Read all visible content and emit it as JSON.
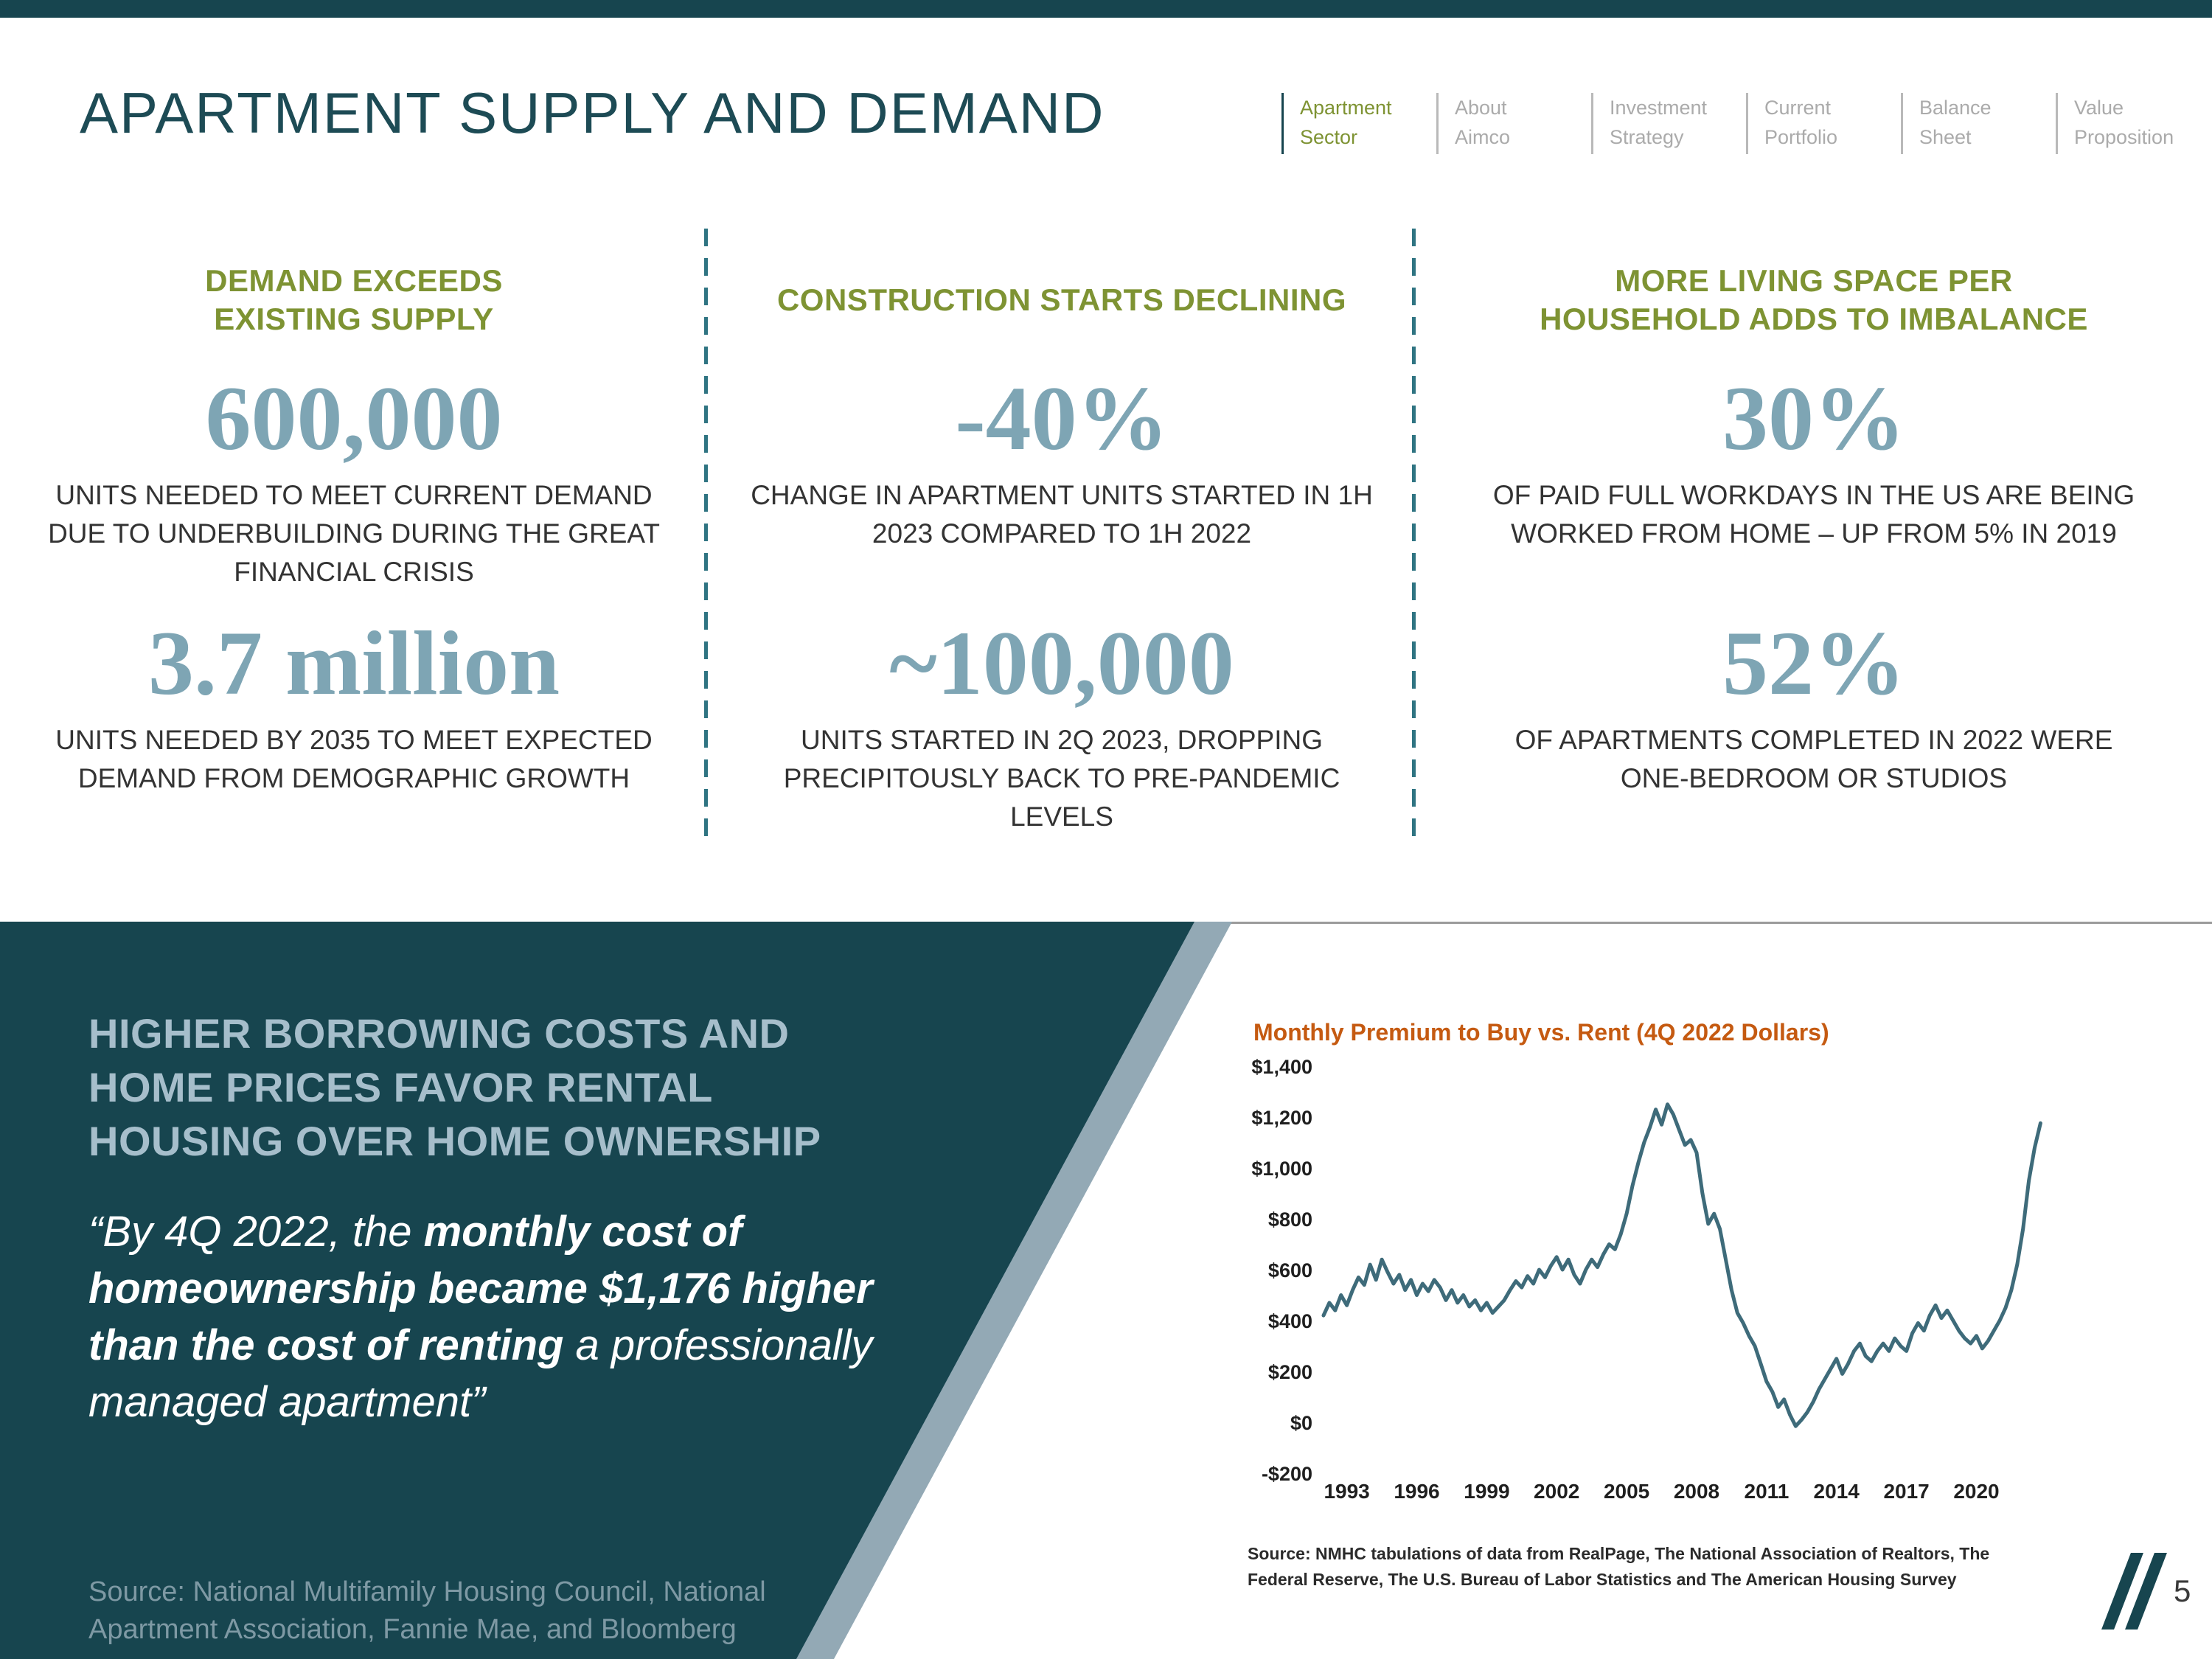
{
  "header": {
    "title": "APARTMENT SUPPLY AND DEMAND",
    "nav": [
      {
        "line1": "Apartment",
        "line2": "Sector",
        "active": true
      },
      {
        "line1": "About",
        "line2": "Aimco",
        "active": false
      },
      {
        "line1": "Investment",
        "line2": "Strategy",
        "active": false
      },
      {
        "line1": "Current",
        "line2": "Portfolio",
        "active": false
      },
      {
        "line1": "Balance",
        "line2": "Sheet",
        "active": false
      },
      {
        "line1": "Value",
        "line2": "Proposition",
        "active": false
      }
    ]
  },
  "stats": {
    "columns": [
      {
        "heading": "DEMAND EXCEEDS EXISTING SUPPLY",
        "stat1_value": "600,000",
        "stat1_caption": "UNITS NEEDED TO MEET CURRENT DEMAND DUE TO UNDERBUILDING DURING THE GREAT FINANCIAL CRISIS",
        "stat2_value": "3.7 million",
        "stat2_caption": "UNITS NEEDED BY 2035 TO MEET EXPECTED DEMAND FROM DEMOGRAPHIC GROWTH"
      },
      {
        "heading": "CONSTRUCTION STARTS DECLINING",
        "stat1_value": "-40%",
        "stat1_caption": "CHANGE IN APARTMENT UNITS STARTED IN 1H 2023 COMPARED TO 1H 2022",
        "stat2_value": "~100,000",
        "stat2_caption": "UNITS STARTED IN 2Q 2023, DROPPING PRECIPITOUSLY BACK TO PRE-PANDEMIC LEVELS"
      },
      {
        "heading": "MORE LIVING SPACE PER HOUSEHOLD ADDS TO IMBALANCE",
        "stat1_value": "30%",
        "stat1_caption": "OF PAID FULL WORKDAYS IN THE US ARE BEING WORKED FROM HOME – UP FROM 5% IN 2019",
        "stat2_value": "52%",
        "stat2_caption": "OF APARTMENTS COMPLETED IN 2022 WERE ONE-BEDROOM OR STUDIOS"
      }
    ]
  },
  "panel": {
    "heading": "HIGHER BORROWING COSTS AND HOME PRICES FAVOR RENTAL HOUSING OVER HOME OWNERSHIP",
    "quote_prefix": "“By 4Q 2022, the ",
    "quote_bold": "monthly cost of homeownership became $1,176 higher than the cost of renting",
    "quote_suffix": " a professionally managed apartment”",
    "source": "Source: National Multifamily Housing Council, National Apartment Association, Fannie Mae, and Bloomberg"
  },
  "page_number": "5",
  "colors": {
    "teal_dark": "#17454F",
    "steel_blue": "#7EA5B4",
    "olive_green": "#7E9333",
    "chart_title_orange": "#C55A11",
    "chart_line": "#3E6B7A",
    "panel_heading": "#A6BECB",
    "nav_inactive_gray": "#ABABAB"
  },
  "chart_data": {
    "type": "line",
    "title": "Monthly Premium to Buy vs. Rent (4Q 2022 Dollars)",
    "xlabel": "",
    "ylabel": "",
    "legend": "none",
    "grid": false,
    "line_color": "#3E6B7A",
    "ylim": [
      -200,
      1400
    ],
    "xlim": [
      1992,
      2023.4
    ],
    "yticks": [
      {
        "value": 1400,
        "label": "$1,400"
      },
      {
        "value": 1200,
        "label": "$1,200"
      },
      {
        "value": 1000,
        "label": "$1,000"
      },
      {
        "value": 800,
        "label": "$800"
      },
      {
        "value": 600,
        "label": "$600"
      },
      {
        "value": 400,
        "label": "$400"
      },
      {
        "value": 200,
        "label": "$200"
      },
      {
        "value": 0,
        "label": "$0"
      },
      {
        "value": -200,
        "label": "-$200"
      }
    ],
    "xticks": [
      1993,
      1996,
      1999,
      2002,
      2005,
      2008,
      2011,
      2014,
      2017,
      2020
    ],
    "x_start": 1992,
    "x_step": 0.25,
    "y": [
      420,
      470,
      440,
      500,
      460,
      520,
      570,
      540,
      620,
      560,
      640,
      590,
      545,
      580,
      520,
      560,
      500,
      545,
      515,
      560,
      530,
      480,
      520,
      470,
      500,
      455,
      480,
      440,
      470,
      430,
      455,
      480,
      520,
      555,
      530,
      575,
      545,
      600,
      570,
      615,
      650,
      600,
      640,
      580,
      545,
      600,
      640,
      610,
      660,
      700,
      680,
      740,
      820,
      930,
      1020,
      1100,
      1160,
      1230,
      1170,
      1250,
      1210,
      1150,
      1090,
      1110,
      1060,
      900,
      780,
      820,
      760,
      640,
      520,
      430,
      390,
      340,
      300,
      230,
      160,
      120,
      60,
      90,
      30,
      -15,
      10,
      40,
      80,
      130,
      170,
      210,
      250,
      190,
      230,
      280,
      310,
      260,
      240,
      280,
      310,
      280,
      330,
      300,
      280,
      350,
      390,
      360,
      420,
      460,
      410,
      440,
      400,
      360,
      330,
      310,
      340,
      290,
      320,
      360,
      400,
      450,
      520,
      620,
      760,
      950,
      1080,
      1176
    ],
    "source": "Source: NMHC tabulations of data from RealPage, The National Association of Realtors, The Federal Reserve, The U.S. Bureau of Labor Statistics and The American Housing Survey"
  }
}
